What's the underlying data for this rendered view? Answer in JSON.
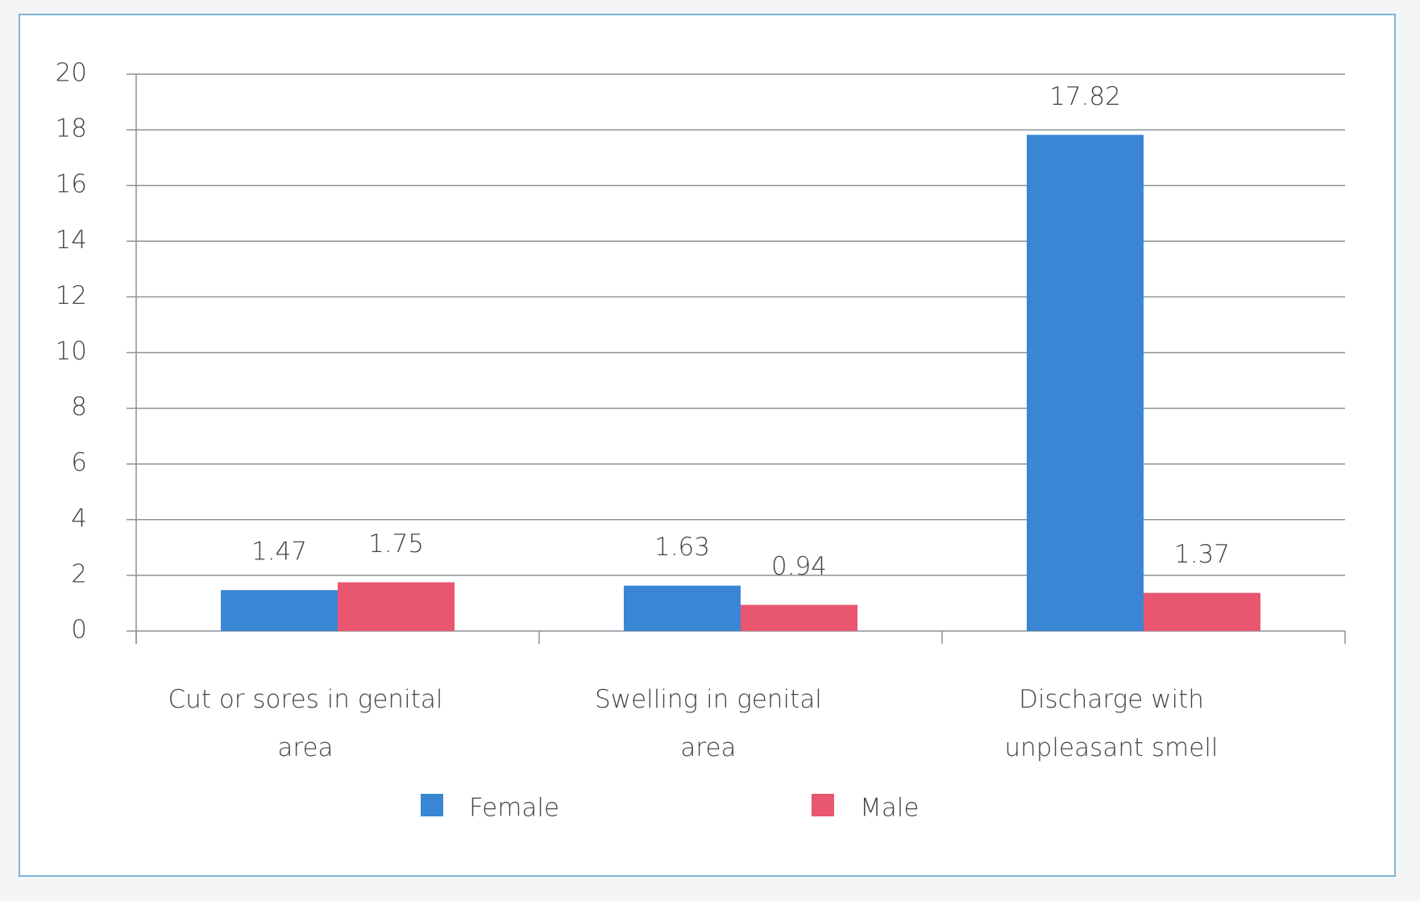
{
  "chart_data": {
    "type": "bar",
    "categories": [
      "Cut or sores in genital area",
      "Swelling in genital area",
      "Discharge with unpleasant smell"
    ],
    "series": [
      {
        "name": "Female",
        "color": "#3a86d4",
        "values": [
          1.47,
          1.63,
          17.82
        ]
      },
      {
        "name": "Male",
        "color": "#e8566f",
        "values": [
          1.75,
          0.94,
          1.37
        ]
      }
    ],
    "ylim": [
      0,
      20
    ],
    "yticks": [
      0,
      2,
      4,
      6,
      8,
      10,
      12,
      14,
      16,
      18,
      20
    ],
    "grid": true,
    "legend": "bottom"
  }
}
